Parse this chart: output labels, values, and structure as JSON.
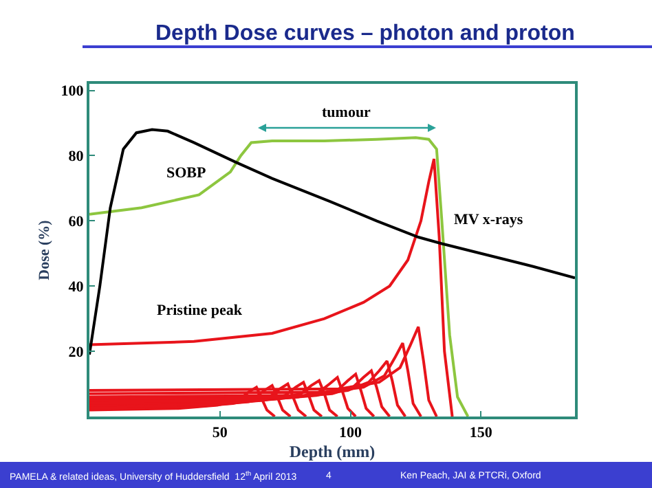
{
  "chart_data": {
    "type": "line",
    "title": "Depth Dose curves – photon and proton",
    "xlabel": "Depth (mm)",
    "ylabel": "Dose (%)",
    "xlim": [
      0,
      186
    ],
    "ylim": [
      0,
      102
    ],
    "xticks": [
      50,
      100,
      150
    ],
    "yticks": [
      20,
      40,
      60,
      80,
      100
    ],
    "marker": "none",
    "line_style": "solid",
    "series": [
      {
        "color": "#e8141b",
        "x": [
          0,
          34,
          49,
          57,
          61,
          64,
          66,
          68,
          71
        ],
        "values": [
          2,
          2.5,
          3.5,
          5,
          7.5,
          9,
          5.5,
          2,
          0
        ]
      },
      {
        "color": "#e8141b",
        "x": [
          0,
          40,
          55,
          63,
          67,
          70,
          72,
          74,
          77
        ],
        "values": [
          2.5,
          3,
          4,
          5.5,
          8,
          9.5,
          6,
          2,
          0
        ]
      },
      {
        "color": "#e8141b",
        "x": [
          0,
          46,
          61,
          69,
          73,
          76,
          78,
          80,
          83
        ],
        "values": [
          3,
          3.5,
          4.5,
          6,
          8.5,
          10,
          6,
          2,
          0
        ]
      },
      {
        "color": "#e8141b",
        "x": [
          0,
          52,
          67,
          75,
          79,
          82,
          84,
          86,
          89
        ],
        "values": [
          3.5,
          4,
          5,
          6.5,
          9,
          10.5,
          6.5,
          2,
          0
        ]
      },
      {
        "color": "#e8141b",
        "x": [
          0,
          58,
          73,
          81,
          85,
          88,
          90,
          92,
          95
        ],
        "values": [
          4,
          4.5,
          5.5,
          7,
          9.5,
          11,
          7,
          2,
          0
        ]
      },
      {
        "color": "#e8141b",
        "x": [
          0,
          65,
          80,
          88,
          92,
          95,
          97,
          99,
          102
        ],
        "values": [
          4.5,
          5,
          6,
          7.5,
          10,
          12,
          7.5,
          2.5,
          0
        ]
      },
      {
        "color": "#e8141b",
        "x": [
          0,
          72,
          87,
          95,
          99,
          102,
          104,
          106,
          109
        ],
        "values": [
          5,
          5.5,
          6.5,
          8,
          11,
          13,
          8,
          2.5,
          0
        ]
      },
      {
        "color": "#e8141b",
        "x": [
          0,
          78,
          93,
          101,
          105,
          108,
          110,
          112,
          115
        ],
        "values": [
          5.5,
          6,
          7,
          9,
          12,
          14,
          9,
          3,
          0
        ]
      },
      {
        "color": "#e8141b",
        "x": [
          0,
          84,
          99,
          107,
          111,
          114,
          116,
          118,
          121
        ],
        "values": [
          6,
          6.5,
          8,
          10.5,
          14,
          17,
          11,
          3.5,
          0
        ]
      },
      {
        "color": "#e8141b",
        "x": [
          0,
          90,
          105,
          113,
          117,
          120,
          122,
          124,
          127
        ],
        "values": [
          7,
          7.5,
          9,
          12.5,
          18,
          22.5,
          14,
          4,
          0
        ]
      },
      {
        "color": "#e8141b",
        "x": [
          0,
          96,
          111,
          119,
          123,
          126,
          128,
          130,
          133
        ],
        "values": [
          8,
          8.5,
          10.5,
          15,
          22,
          27.5,
          17,
          5,
          0
        ]
      },
      {
        "color": "#8dc63f",
        "x": [
          0,
          20,
          42,
          54,
          58,
          62,
          70,
          90,
          110,
          125,
          130,
          133,
          135,
          138,
          141,
          145
        ],
        "values": [
          62,
          64,
          68,
          75,
          80,
          84,
          84.5,
          84.5,
          85,
          85.5,
          85,
          82,
          60,
          25,
          6,
          0
        ]
      },
      {
        "color": "#e8141b",
        "x": [
          0,
          40,
          70,
          90,
          105,
          115,
          122,
          127,
          130,
          132,
          134,
          136,
          139
        ],
        "values": [
          22,
          23,
          25.5,
          30,
          35,
          40,
          48,
          60,
          72,
          79,
          55,
          20,
          0
        ]
      },
      {
        "color": "#000000",
        "x": [
          0,
          4,
          8,
          13,
          18,
          24,
          30,
          40,
          56,
          70,
          92,
          110,
          126,
          135,
          150,
          170,
          186
        ],
        "values": [
          19,
          40,
          64,
          82,
          87,
          88,
          87.5,
          84,
          78,
          73,
          66,
          60,
          55,
          53,
          50,
          46,
          42.5
        ]
      }
    ],
    "annotations": [
      "tumour",
      "SOBP",
      "MV x-rays",
      "Pristine peak",
      "PAMELA & related ideas, University of Huddersfield  12$^{th}$ April 2013",
      "4",
      "Ken Peach, JAI & PTCRi, Oxford"
    ]
  }
}
